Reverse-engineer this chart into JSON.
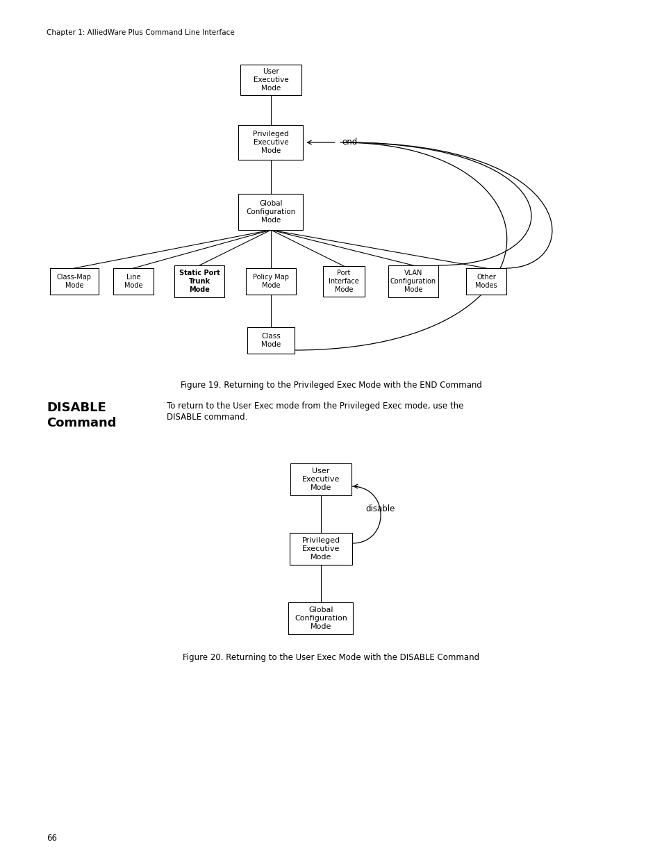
{
  "page_header": "Chapter 1: AlliedWare Plus Command Line Interface",
  "page_number": "66",
  "fig1_caption": "Figure 19. Returning to the Privileged Exec Mode with the END Command",
  "fig2_caption": "Figure 20. Returning to the User Exec Mode with the DISABLE Command",
  "disable_title_line1": "DISABLE",
  "disable_title_line2": "Command",
  "disable_text_line1": "To return to the User Exec mode from the Privileged Exec mode, use the",
  "disable_text_line2": "DISABLE command.",
  "background_color": "#ffffff"
}
